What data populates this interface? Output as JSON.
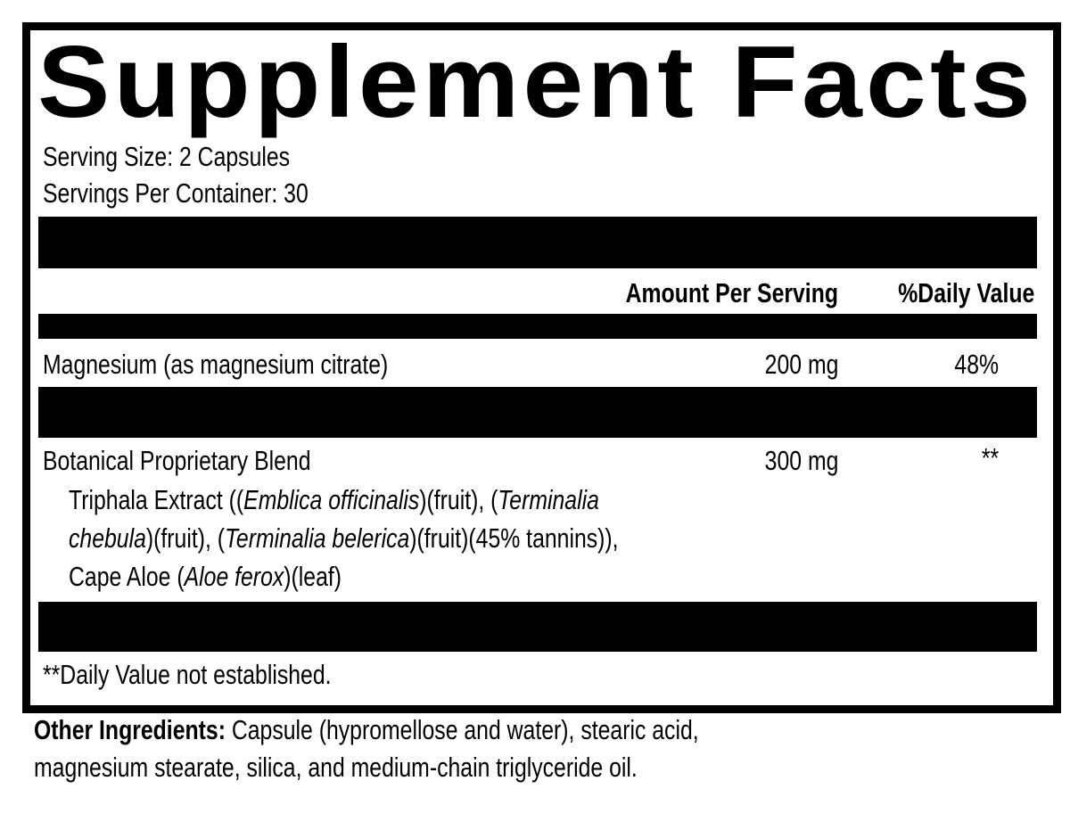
{
  "title": "Supplement Facts",
  "serving_size": "Serving Size: 2 Capsules",
  "servings_per_container": "Servings Per Container: 30",
  "header": {
    "amount": "Amount Per Serving",
    "daily_value": "%Daily Value"
  },
  "rows": [
    {
      "name": "Magnesium (as magnesium citrate)",
      "amount": "200 mg",
      "dv": "48%"
    },
    {
      "name": "Botanical Proprietary Blend",
      "amount": "300 mg",
      "dv": "**"
    }
  ],
  "blend": {
    "l1a": "Triphala Extract ((",
    "l1b": "Emblica officinalis",
    "l1c": ")(fruit), (",
    "l1d": "Terminalia",
    "l2a": "chebula",
    "l2b": ")(fruit), (",
    "l2c": "Terminalia belerica",
    "l2d": ")(fruit)(45% tannins)),",
    "l3a": "Cape Aloe (",
    "l3b": "Aloe ferox",
    "l3c": ")(leaf)"
  },
  "footnote": "**Daily Value not established.",
  "other": {
    "label": "Other Ingredients:",
    "line1": " Capsule (hypromellose and water), stearic acid,",
    "line2": "magnesium stearate, silica, and medium-chain triglyceride oil."
  }
}
